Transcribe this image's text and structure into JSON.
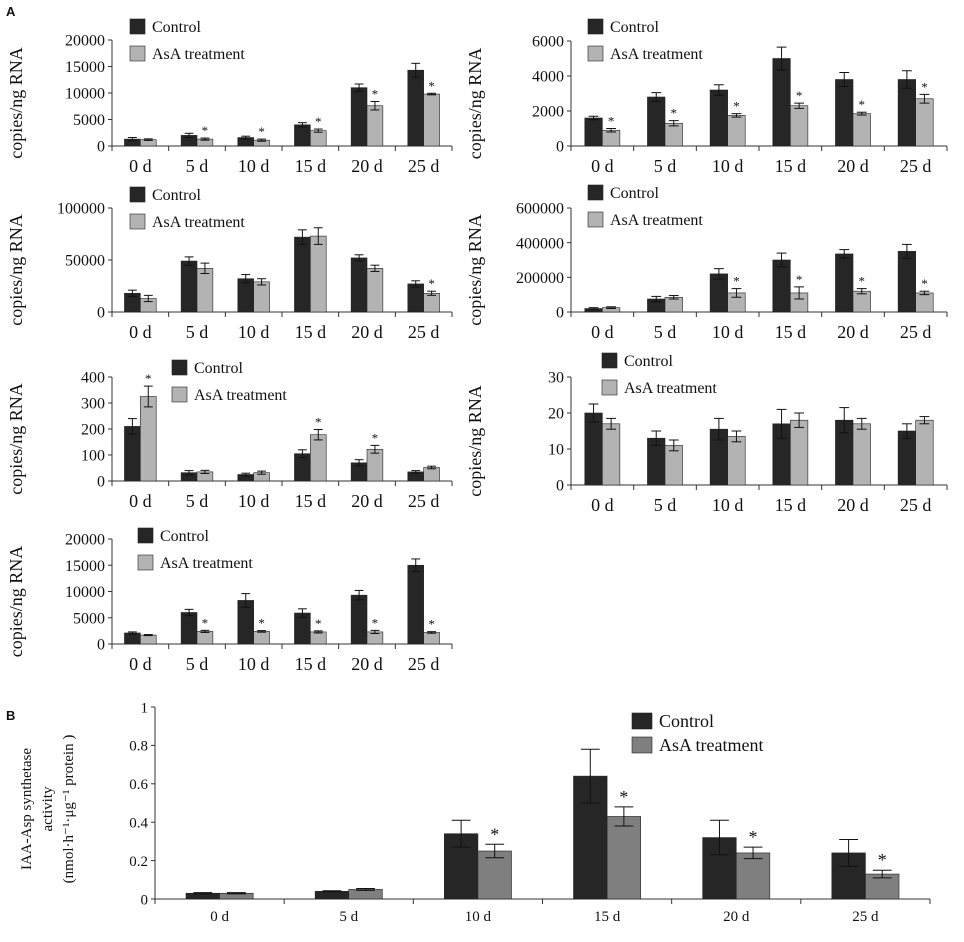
{
  "figure": {
    "panel_a": "A",
    "panel_b": "B"
  },
  "colors": {
    "control": "#262626",
    "asa_a": "#b3b3b3",
    "asa_b": "#7f7f7f",
    "axis": "#333333"
  },
  "chart_data": [
    {
      "id": "a1",
      "type": "bar",
      "panel": "A",
      "categories": [
        "0 d",
        "5 d",
        "10 d",
        "15 d",
        "20 d",
        "25 d"
      ],
      "ylabel": "copies/ng  RNA",
      "yticks": [
        "0",
        "5000",
        "10000",
        "15000",
        "20000"
      ],
      "ylim": [
        0,
        20000
      ],
      "legend": [
        "Control",
        "AsA treatment"
      ],
      "series": [
        {
          "name": "Control",
          "values": [
            1300,
            2000,
            1600,
            4000,
            11000,
            14300
          ],
          "errors": [
            300,
            400,
            250,
            400,
            700,
            1300
          ]
        },
        {
          "name": "AsA treatment",
          "values": [
            1200,
            1300,
            1100,
            2900,
            7600,
            9800
          ],
          "errors": [
            150,
            200,
            200,
            300,
            800,
            150
          ]
        }
      ],
      "significance": [
        "",
        "*",
        "*",
        "*",
        "*",
        "*"
      ]
    },
    {
      "id": "a2",
      "type": "bar",
      "panel": "A",
      "categories": [
        "0 d",
        "5 d",
        "10 d",
        "15 d",
        "20 d",
        "25 d"
      ],
      "ylabel": "copies/ng  RNA",
      "yticks": [
        "0",
        "2000",
        "4000",
        "6000"
      ],
      "ylim": [
        0,
        6000
      ],
      "legend": [
        "Control",
        "AsA treatment"
      ],
      "series": [
        {
          "name": "Control",
          "values": [
            1600,
            2800,
            3200,
            5000,
            3800,
            3800
          ],
          "errors": [
            100,
            250,
            300,
            650,
            400,
            500
          ]
        },
        {
          "name": "AsA treatment",
          "values": [
            900,
            1300,
            1750,
            2300,
            1850,
            2700
          ],
          "errors": [
            100,
            150,
            100,
            150,
            80,
            250
          ]
        }
      ],
      "significance": [
        "*",
        "*",
        "*",
        "*",
        "*",
        "*"
      ]
    },
    {
      "id": "a3",
      "type": "bar",
      "panel": "A",
      "categories": [
        "0 d",
        "5 d",
        "10 d",
        "15 d",
        "20 d",
        "25 d"
      ],
      "ylabel": "copies/ng  RNA",
      "yticks": [
        "0",
        "50000",
        "100000"
      ],
      "ylim": [
        0,
        100000
      ],
      "legend": [
        "Control",
        "AsA treatment"
      ],
      "series": [
        {
          "name": "Control",
          "values": [
            18000,
            49000,
            32000,
            72000,
            52000,
            27000
          ],
          "errors": [
            3000,
            4000,
            4000,
            7000,
            3000,
            3000
          ]
        },
        {
          "name": "AsA treatment",
          "values": [
            13000,
            42000,
            29000,
            73000,
            42000,
            18000
          ],
          "errors": [
            3000,
            5000,
            3000,
            8000,
            3000,
            2000
          ]
        }
      ],
      "significance": [
        "",
        "",
        "",
        "",
        "",
        "*"
      ]
    },
    {
      "id": "a4",
      "type": "bar",
      "panel": "A",
      "categories": [
        "0 d",
        "5 d",
        "10 d",
        "15 d",
        "20 d",
        "25 d"
      ],
      "ylabel": "copies/ng  RNA",
      "yticks": [
        "0",
        "200000",
        "400000",
        "600000"
      ],
      "ylim": [
        0,
        600000
      ],
      "legend": [
        "Control",
        "AsA treatment"
      ],
      "series": [
        {
          "name": "Control",
          "values": [
            20000,
            75000,
            220000,
            300000,
            335000,
            350000
          ],
          "errors": [
            5000,
            15000,
            30000,
            40000,
            25000,
            40000
          ]
        },
        {
          "name": "AsA treatment",
          "values": [
            25000,
            85000,
            110000,
            110000,
            120000,
            110000
          ],
          "errors": [
            5000,
            10000,
            25000,
            35000,
            15000,
            10000
          ]
        }
      ],
      "significance": [
        "",
        "",
        "*",
        "*",
        "*",
        "*"
      ]
    },
    {
      "id": "a5",
      "type": "bar",
      "panel": "A",
      "categories": [
        "0 d",
        "5 d",
        "10 d",
        "15 d",
        "20 d",
        "25 d"
      ],
      "ylabel": "copies/ng  RNA",
      "yticks": [
        "0",
        "100",
        "200",
        "300",
        "400"
      ],
      "ylim": [
        0,
        400
      ],
      "legend": [
        "Control",
        "AsA treatment"
      ],
      "series": [
        {
          "name": "Control",
          "values": [
            210,
            32,
            25,
            105,
            70,
            35
          ],
          "errors": [
            30,
            8,
            5,
            15,
            12,
            5
          ]
        },
        {
          "name": "AsA treatment",
          "values": [
            325,
            35,
            32,
            178,
            122,
            52
          ],
          "errors": [
            40,
            6,
            6,
            20,
            15,
            5
          ]
        }
      ],
      "significance": [
        "*",
        "",
        "",
        "*",
        "*",
        ""
      ]
    },
    {
      "id": "a6",
      "type": "bar",
      "panel": "A",
      "categories": [
        "0 d",
        "5 d",
        "10 d",
        "15 d",
        "20 d",
        "25 d"
      ],
      "ylabel": "copies/ng  RNA",
      "yticks": [
        "0",
        "10",
        "20",
        "30"
      ],
      "ylim": [
        0,
        30
      ],
      "legend": [
        "Control",
        "AsA treatment"
      ],
      "series": [
        {
          "name": "Control",
          "values": [
            20,
            13,
            15.5,
            17,
            18,
            15
          ],
          "errors": [
            2.5,
            2,
            3,
            4,
            3.5,
            2
          ]
        },
        {
          "name": "AsA treatment",
          "values": [
            17,
            11,
            13.5,
            18,
            17,
            18
          ],
          "errors": [
            1.5,
            1.5,
            1.5,
            2,
            1.5,
            1
          ]
        }
      ],
      "significance": [
        "",
        "",
        "",
        "",
        "",
        ""
      ]
    },
    {
      "id": "a7",
      "type": "bar",
      "panel": "A",
      "categories": [
        "0 d",
        "5 d",
        "10 d",
        "15 d",
        "20 d",
        "25 d"
      ],
      "ylabel": "copies/ng  RNA",
      "yticks": [
        "0",
        "5000",
        "10000",
        "15000",
        "20000"
      ],
      "ylim": [
        0,
        20000
      ],
      "legend": [
        "Control",
        "AsA treatment"
      ],
      "series": [
        {
          "name": "Control",
          "values": [
            2100,
            6000,
            8300,
            5900,
            9300,
            15000
          ],
          "errors": [
            200,
            600,
            1300,
            800,
            900,
            1200
          ]
        },
        {
          "name": "AsA treatment",
          "values": [
            1700,
            2400,
            2400,
            2300,
            2300,
            2200
          ],
          "errors": [
            100,
            200,
            150,
            200,
            300,
            150
          ]
        }
      ],
      "significance": [
        "",
        "*",
        "*",
        "*",
        "*",
        "*"
      ]
    },
    {
      "id": "b",
      "type": "bar",
      "panel": "B",
      "categories": [
        "0 d",
        "5 d",
        "10 d",
        "15 d",
        "20 d",
        "25 d"
      ],
      "ylabel_lines": [
        "IAA-Asp synthetase",
        "activity",
        "(nmol·h⁻¹·μg⁻¹   protein )"
      ],
      "yticks": [
        "0",
        "0.2",
        "0.4",
        "0.6",
        "0.8",
        "1"
      ],
      "ylim": [
        0,
        1
      ],
      "legend": [
        "Control",
        "AsA treatment"
      ],
      "series": [
        {
          "name": "Control",
          "values": [
            0.03,
            0.04,
            0.34,
            0.64,
            0.32,
            0.24
          ],
          "errors": [
            0.003,
            0.003,
            0.07,
            0.14,
            0.09,
            0.07
          ]
        },
        {
          "name": "AsA treatment",
          "values": [
            0.03,
            0.05,
            0.25,
            0.43,
            0.24,
            0.13
          ],
          "errors": [
            0.003,
            0.005,
            0.035,
            0.05,
            0.03,
            0.02
          ]
        }
      ],
      "significance": [
        "",
        "",
        "*",
        "*",
        "*",
        "*"
      ]
    }
  ]
}
